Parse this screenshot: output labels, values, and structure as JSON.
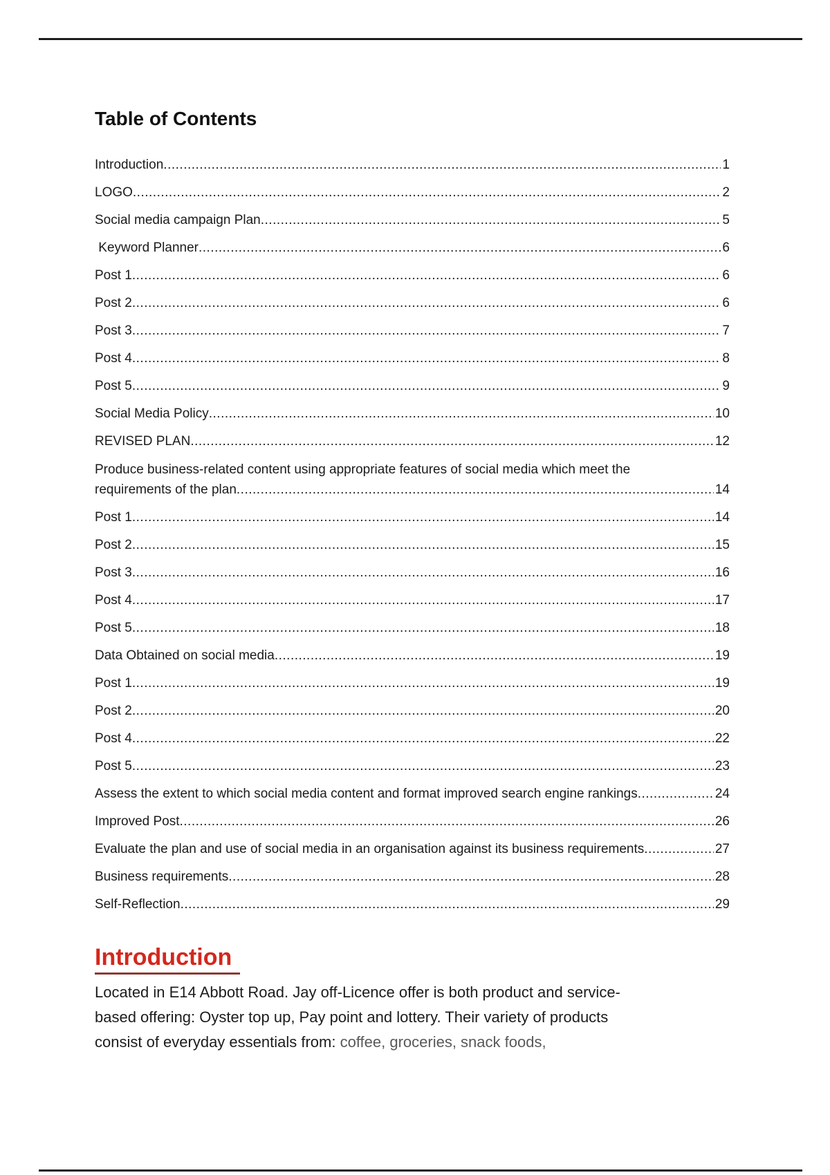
{
  "page": {
    "background": "#ffffff",
    "border_color": "#1c1c1c",
    "text_color": "#1b1b1b"
  },
  "toc": {
    "title": "Table of Contents",
    "entries": [
      {
        "label": "Introduction",
        "page": "1"
      },
      {
        "label": "LOGO",
        "page": "2"
      },
      {
        "label": "Social media campaign Plan",
        "page": "5"
      },
      {
        "label": " Keyword Planner",
        "page": "6"
      },
      {
        "label": "Post 1",
        "page": "6"
      },
      {
        "label": "Post 2",
        "page": "6"
      },
      {
        "label": "Post 3",
        "page": "7"
      },
      {
        "label": "Post 4",
        "page": "8"
      },
      {
        "label": "Post 5",
        "page": "9"
      },
      {
        "label": "Social Media Policy",
        "page": "10"
      },
      {
        "label": "REVISED PLAN",
        "page": "12"
      },
      {
        "label": "Produce business-related content using appropriate features of social media which meet the",
        "label2": "requirements of the plan",
        "page": "14"
      },
      {
        "label": "Post 1",
        "page": "14"
      },
      {
        "label": "Post 2",
        "page": "15"
      },
      {
        "label": "Post 3",
        "page": "16"
      },
      {
        "label": "Post 4",
        "page": "17"
      },
      {
        "label": "Post 5",
        "page": "18"
      },
      {
        "label": "Data Obtained on social media",
        "page": "19"
      },
      {
        "label": "Post 1",
        "page": "19"
      },
      {
        "label": "Post 2",
        "page": "20"
      },
      {
        "label": "Post 4",
        "page": "22"
      },
      {
        "label": "Post 5",
        "page": "23"
      },
      {
        "label": "Assess the extent to which social media content and format improved search engine rankings",
        "page": "24"
      },
      {
        "label": "Improved Post",
        "page": "26"
      },
      {
        "label": "Evaluate the plan and use of social media in an organisation against its business requirements",
        "page": "27"
      },
      {
        "label": "Business requirements",
        "page": "28"
      },
      {
        "label": "Self-Reflection",
        "page": "29"
      }
    ]
  },
  "intro": {
    "heading": "Introduction",
    "heading_color": "#d3281d",
    "underline_color": "#8a3a33",
    "muted_color": "#595959",
    "lines": [
      {
        "text": "Located in E14 Abbott Road. Jay off-Licence offer is both product and service-"
      },
      {
        "text": "based offering: Oyster top up, Pay point and lottery. Their variety of products"
      },
      {
        "text": "consist of everyday essentials from: ",
        "muted": "coffee, groceries, snack foods,"
      }
    ]
  }
}
